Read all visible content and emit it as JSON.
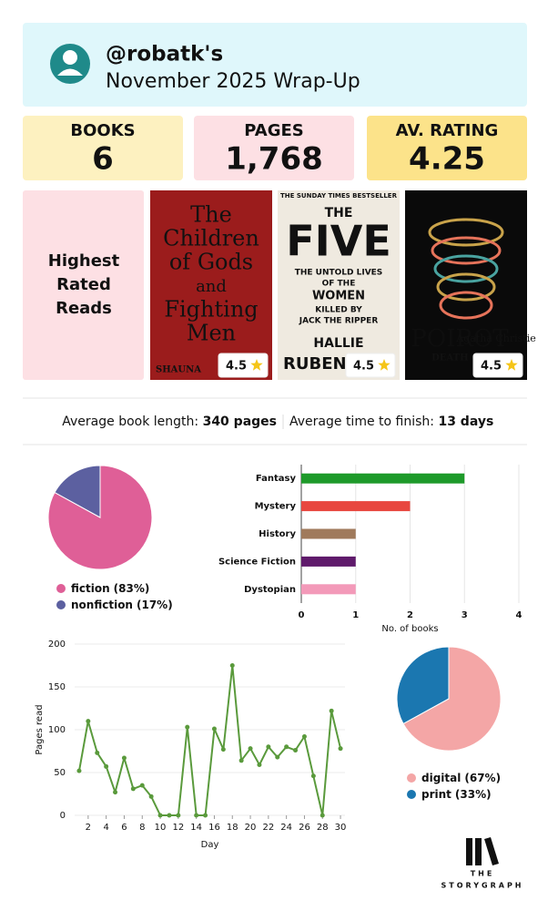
{
  "header": {
    "handle": "@robatk's",
    "subtitle": "November 2025 Wrap-Up"
  },
  "stats": [
    {
      "label": "BOOKS",
      "value": "6"
    },
    {
      "label": "PAGES",
      "value": "1,768"
    },
    {
      "label": "AV. RATING",
      "value": "4.25"
    }
  ],
  "highest_rated": {
    "lines": [
      "Highest",
      "Rated",
      "Reads"
    ],
    "covers": [
      {
        "lines": [
          "The",
          "Children",
          "of Gods",
          "and",
          "Fighting",
          "Men"
        ],
        "author": "SHAUNA",
        "rating": 4.5
      },
      {
        "lines": [
          "THE SUNDAY TIMES BESTSELLER",
          "THE",
          "FIVE",
          "THE UNTOLD LIVES",
          "OF THE",
          "WOMEN",
          "KILLED BY",
          "JACK THE RIPPER",
          "HALLIE"
        ],
        "author": "RUBEN",
        "rating": 4.5
      },
      {
        "lines": [
          "Agatha Christie",
          "POIROT"
        ],
        "author": "DEATH ON",
        "rating": 4.5
      }
    ]
  },
  "averages": {
    "length_label": "Average book length:",
    "length_value": "340 pages",
    "time_label": "Average time to finish:",
    "time_value": "13 days"
  },
  "chart_data": [
    {
      "type": "pie",
      "categories": [
        "fiction",
        "nonfiction"
      ],
      "values": [
        83,
        17
      ],
      "value_labels": [
        "(83%)",
        "(17%)"
      ],
      "colors": [
        "#df5f97",
        "#5c60a0"
      ]
    },
    {
      "type": "hbar",
      "categories": [
        "Fantasy",
        "Mystery",
        "History",
        "Science Fiction",
        "Dystopian"
      ],
      "values": [
        3,
        2,
        1,
        1,
        1
      ],
      "colors": [
        "#1e9a2a",
        "#e8473f",
        "#a07a5c",
        "#5f1a6b",
        "#f39ab9"
      ],
      "xlim": [
        0,
        4
      ],
      "xticks": [
        0,
        1,
        2,
        3,
        4
      ],
      "xlabel": "No. of books",
      "grid": true
    },
    {
      "type": "line",
      "x": [
        1,
        2,
        3,
        4,
        5,
        6,
        7,
        8,
        9,
        10,
        11,
        12,
        13,
        14,
        15,
        16,
        17,
        18,
        19,
        20,
        21,
        22,
        23,
        24,
        25,
        26,
        27,
        28,
        29,
        30
      ],
      "values": [
        52,
        110,
        73,
        57,
        27,
        67,
        31,
        35,
        22,
        0,
        0,
        0,
        103,
        0,
        0,
        101,
        77,
        175,
        64,
        78,
        59,
        80,
        68,
        80,
        76,
        92,
        46,
        0,
        122,
        78
      ],
      "color": "#5a9a3c",
      "xlim": [
        0.5,
        30.5
      ],
      "xticks": [
        2,
        4,
        6,
        8,
        10,
        12,
        14,
        16,
        18,
        20,
        22,
        24,
        26,
        28,
        30
      ],
      "ylim": [
        0,
        200
      ],
      "yticks": [
        0,
        50,
        100,
        150,
        200
      ],
      "xlabel": "Day",
      "ylabel": "Pages read",
      "grid": true
    },
    {
      "type": "pie",
      "categories": [
        "digital",
        "print"
      ],
      "values": [
        67,
        33
      ],
      "value_labels": [
        "(67%)",
        "(33%)"
      ],
      "colors": [
        "#f4a6a6",
        "#1b77b0"
      ]
    }
  ],
  "footer": {
    "lines": [
      "THE",
      "STORYGRAPH"
    ]
  }
}
